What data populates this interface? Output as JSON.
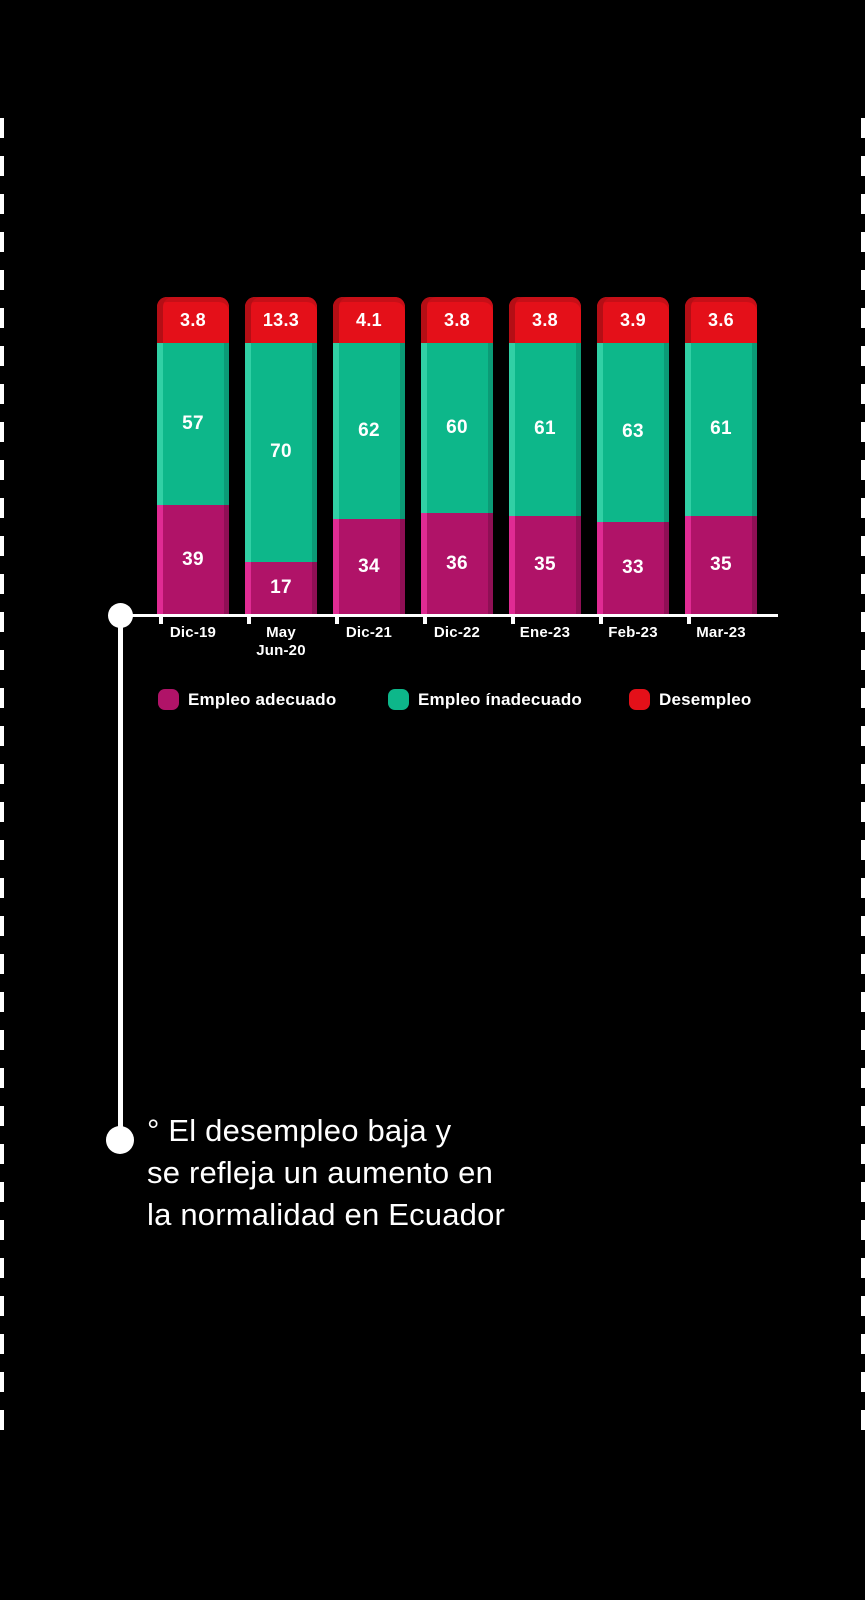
{
  "chart_data": {
    "type": "bar",
    "stacked": true,
    "unit": "%",
    "categories": [
      "Dic-19",
      "May\nJun-20",
      "Dic-21",
      "Dic-22",
      "Ene-23",
      "Feb-23",
      "Mar-23"
    ],
    "series": [
      {
        "name": "Empleo adecuado",
        "color": "#b01368",
        "values": [
          39,
          17,
          34,
          36,
          35,
          33,
          35
        ]
      },
      {
        "name": "Empleo inadecuado",
        "color": "#0db78a",
        "values": [
          57,
          70,
          62,
          60,
          61,
          63,
          61
        ]
      },
      {
        "name": "Desempleo",
        "color": "#e41019",
        "values": [
          3.8,
          13.3,
          4.1,
          3.8,
          3.8,
          3.9,
          3.6
        ]
      }
    ],
    "ylim": [
      0,
      100
    ],
    "grid": false,
    "legend_position": "bottom",
    "axis_color": "#ffffff",
    "background_color": "#000000"
  },
  "legend": {
    "items": [
      {
        "label": "Empleo adecuado",
        "color": "#b01368"
      },
      {
        "label": "Empleo ínadecuado",
        "color": "#0db78a"
      },
      {
        "label": "Desempleo",
        "color": "#e41019"
      }
    ]
  },
  "caption": {
    "text": "° El desempleo baja y\nse refleja un aumento en\nla normalidad en Ecuador"
  }
}
